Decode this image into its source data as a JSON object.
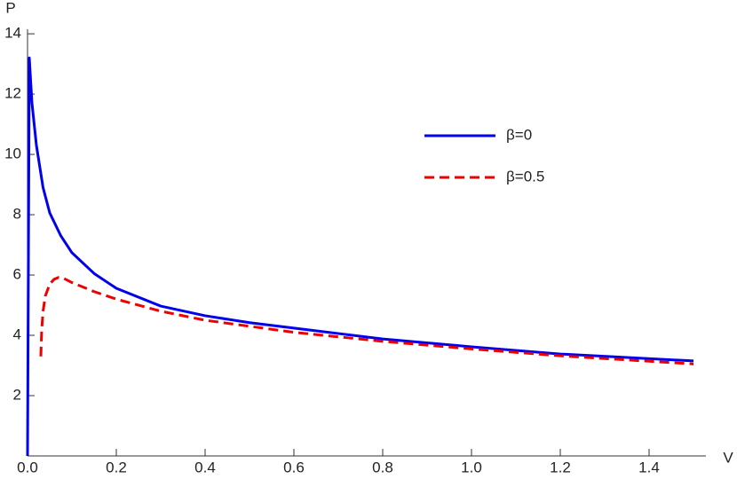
{
  "chart_data": {
    "type": "line",
    "x_label": "V",
    "y_label": "P",
    "xlim": [
      0,
      1.528
    ],
    "ylim": [
      0,
      14.15
    ],
    "xticks": [
      {
        "value": 0,
        "label": "0.0"
      },
      0.2,
      0.4,
      0.6,
      0.8,
      {
        "value": 1,
        "label": "1.0"
      },
      1.2,
      1.4
    ],
    "yticks": [
      2,
      4,
      6,
      8,
      10,
      12,
      14
    ],
    "legend": "upper-right",
    "series": [
      {
        "name": "β=0",
        "color": "#0000ee",
        "dash": false,
        "x": [
          0,
          0.004,
          0.01,
          0.02,
          0.035,
          0.05,
          0.075,
          0.1,
          0.15,
          0.2,
          0.3,
          0.4,
          0.5,
          0.6,
          0.8,
          1.0,
          1.2,
          1.5
        ],
        "values": [
          0,
          13.2,
          11.7,
          10.3,
          8.9,
          8.06,
          7.3,
          6.74,
          6.05,
          5.56,
          4.97,
          4.65,
          4.42,
          4.24,
          3.88,
          3.62,
          3.38,
          3.15
        ]
      },
      {
        "name": "β=0.5",
        "color": "#ee0000",
        "dash": true,
        "x": [
          0.03,
          0.032,
          0.035,
          0.04,
          0.05,
          0.06,
          0.07,
          0.08,
          0.1,
          0.15,
          0.2,
          0.3,
          0.4,
          0.6,
          0.8,
          1.0,
          1.2,
          1.5
        ],
        "values": [
          3.3,
          4.2,
          4.8,
          5.3,
          5.7,
          5.86,
          5.92,
          5.9,
          5.75,
          5.45,
          5.2,
          4.8,
          4.5,
          4.1,
          3.8,
          3.55,
          3.32,
          3.05
        ]
      }
    ]
  }
}
